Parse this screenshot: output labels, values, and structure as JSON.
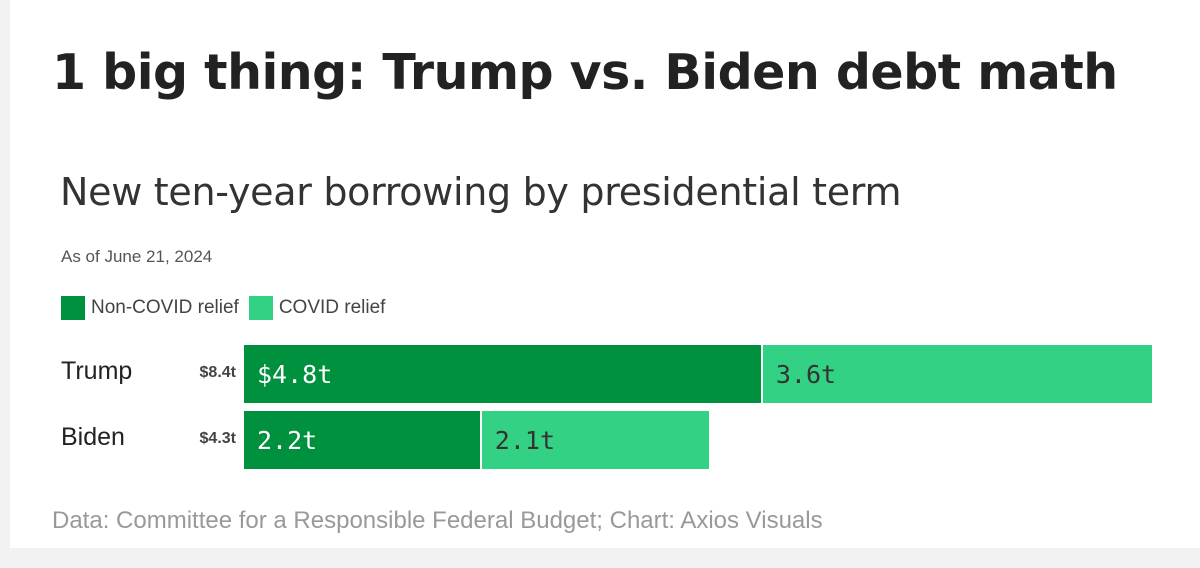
{
  "headline": "1 big thing: Trump vs. Biden debt math",
  "source": "Data: Committee for a Responsible Federal Budget; Chart: Axios Visuals",
  "colors": {
    "non_covid": "#00913f",
    "covid": "#32d184",
    "non_covid_text": "#ffffff",
    "covid_text": "#333333"
  },
  "chart_data": {
    "type": "bar",
    "orientation": "horizontal",
    "stacked": true,
    "title": "New ten-year borrowing by presidential term",
    "subtitle": "As of June 21, 2024",
    "legend_position": "top-left",
    "grid": false,
    "categories": [
      "Trump",
      "Biden"
    ],
    "totals": [
      "$8.4t",
      "$4.3t"
    ],
    "series": [
      {
        "name": "Non-COVID relief",
        "values": [
          4.8,
          2.2
        ],
        "labels": [
          "$4.8t",
          "2.2t"
        ]
      },
      {
        "name": "COVID relief",
        "values": [
          3.6,
          2.1
        ],
        "labels": [
          "3.6t",
          "2.1t"
        ]
      }
    ],
    "xlim": [
      0,
      8.4
    ]
  }
}
